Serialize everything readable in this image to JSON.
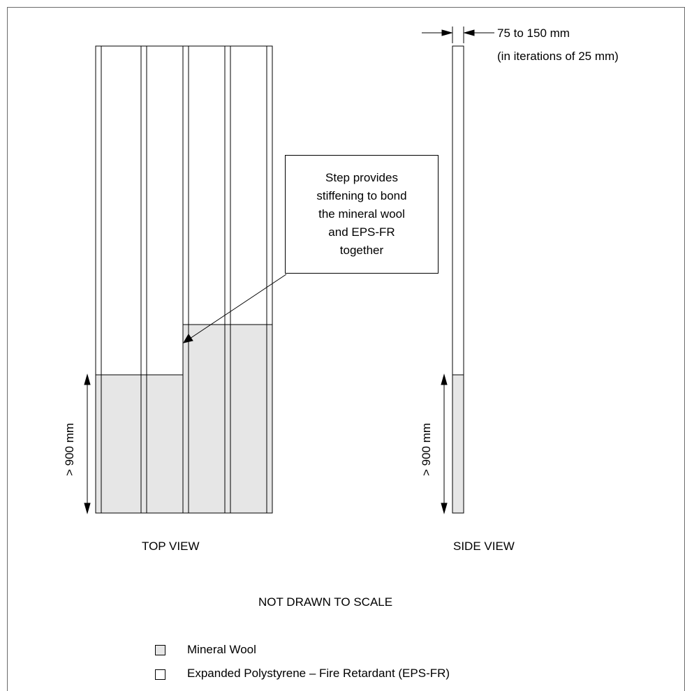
{
  "callout": {
    "text": "Step provides\nstiffening to bond\nthe mineral wool\nand EPS-FR\ntogether"
  },
  "dimensions": {
    "thickness_label": "75 to 150 mm",
    "thickness_note": "(in iterations of 25 mm)",
    "height_label_top": "> 900 mm",
    "height_label_side": "> 900 mm"
  },
  "views": {
    "top": "TOP VIEW",
    "side": "SIDE VIEW"
  },
  "scale_note": "NOT DRAWN TO SCALE",
  "legend": [
    {
      "label": "Mineral Wool",
      "color": "#e6e6e6"
    },
    {
      "label": "Expanded Polystyrene – Fire Retardant (EPS-FR)",
      "color": "#ffffff"
    }
  ],
  "colors": {
    "mineral_wool": "#e6e6e6",
    "eps_fr": "#ffffff",
    "line": "#000000"
  }
}
